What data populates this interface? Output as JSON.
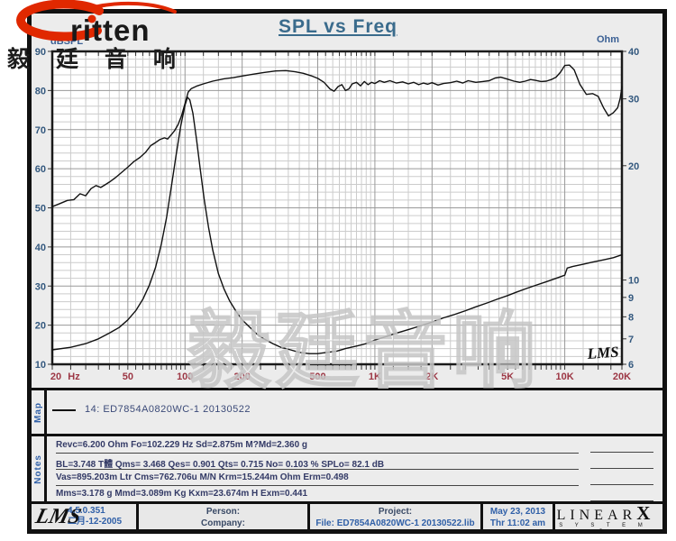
{
  "title": "SPL vs Freq",
  "brand": {
    "logo_text": "ritten",
    "cn_header": "毅 廷 音 响"
  },
  "watermark": "毅廷音响",
  "chart_data": {
    "type": "line",
    "title": "SPL vs Freq",
    "grid": "on",
    "x_axis": {
      "unit": "Hz",
      "scale": "log",
      "min": 20,
      "max": 20000,
      "ticks": [
        20,
        50,
        100,
        200,
        500,
        1000,
        2000,
        5000,
        10000,
        20000
      ],
      "tick_labels": [
        "20",
        "50",
        "100",
        "200",
        "500",
        "1K",
        "2K",
        "5K",
        "10K",
        "20K"
      ],
      "minor_multipliers": [
        1.25,
        1.5,
        1.75,
        2,
        2.5,
        3,
        3.5,
        4,
        4.5,
        5,
        5.5,
        6,
        6.5,
        7,
        7.5,
        8,
        8.5,
        9,
        9.5
      ]
    },
    "y_left": {
      "label": "dBSPL",
      "scale": "linear",
      "min": 10,
      "max": 90,
      "ticks": [
        90,
        80,
        70,
        60,
        50,
        40,
        30,
        20,
        10
      ],
      "minor_step": 2
    },
    "y_right": {
      "label": "Ohm",
      "scale": "log",
      "min": 6,
      "max": 40,
      "ticks": [
        40,
        30,
        20,
        10,
        9,
        8,
        7,
        6
      ]
    },
    "in_plot_label": "LMS",
    "series": [
      {
        "name": "SPL curve — 14: ED7854A0820WC-1 20130522",
        "axis": "left",
        "points": [
          [
            20,
            50.3
          ],
          [
            22,
            51.1
          ],
          [
            24,
            51.9
          ],
          [
            26,
            52.1
          ],
          [
            28,
            53.6
          ],
          [
            30,
            53.1
          ],
          [
            32,
            54.9
          ],
          [
            34,
            55.7
          ],
          [
            36,
            55.2
          ],
          [
            38,
            55.9
          ],
          [
            40,
            56.6
          ],
          [
            43,
            57.7
          ],
          [
            46,
            58.9
          ],
          [
            50,
            60.4
          ],
          [
            54,
            61.9
          ],
          [
            58,
            62.9
          ],
          [
            62,
            64.2
          ],
          [
            66,
            65.9
          ],
          [
            70,
            66.7
          ],
          [
            74,
            67.5
          ],
          [
            78,
            67.9
          ],
          [
            81,
            67.6
          ],
          [
            84,
            68.5
          ],
          [
            88,
            69.7
          ],
          [
            92,
            71.3
          ],
          [
            96,
            73.6
          ],
          [
            100,
            76.6
          ],
          [
            104,
            79.6
          ],
          [
            108,
            80.5
          ],
          [
            115,
            81.1
          ],
          [
            125,
            81.7
          ],
          [
            140,
            82.4
          ],
          [
            160,
            83
          ],
          [
            180,
            83.3
          ],
          [
            200,
            83.7
          ],
          [
            230,
            84.2
          ],
          [
            260,
            84.6
          ],
          [
            300,
            85
          ],
          [
            340,
            85.1
          ],
          [
            380,
            84.8
          ],
          [
            420,
            84.4
          ],
          [
            460,
            83.8
          ],
          [
            500,
            83.1
          ],
          [
            540,
            82.1
          ],
          [
            580,
            80.4
          ],
          [
            610,
            79.8
          ],
          [
            640,
            81
          ],
          [
            670,
            81.5
          ],
          [
            700,
            80
          ],
          [
            730,
            80.4
          ],
          [
            760,
            81.7
          ],
          [
            800,
            82.1
          ],
          [
            840,
            81.2
          ],
          [
            880,
            82.3
          ],
          [
            920,
            81.5
          ],
          [
            960,
            82.1
          ],
          [
            1000,
            81.8
          ],
          [
            1060,
            82.5
          ],
          [
            1120,
            82.1
          ],
          [
            1200,
            82.5
          ],
          [
            1300,
            81.9
          ],
          [
            1400,
            82.2
          ],
          [
            1500,
            81.7
          ],
          [
            1600,
            82.1
          ],
          [
            1700,
            81.5
          ],
          [
            1800,
            81.9
          ],
          [
            1900,
            81.6
          ],
          [
            2000,
            82
          ],
          [
            2150,
            81.4
          ],
          [
            2300,
            81.8
          ],
          [
            2500,
            82
          ],
          [
            2700,
            82.4
          ],
          [
            2900,
            81.9
          ],
          [
            3100,
            82.5
          ],
          [
            3400,
            82.1
          ],
          [
            3700,
            82.3
          ],
          [
            4000,
            82.5
          ],
          [
            4300,
            83.2
          ],
          [
            4600,
            83.4
          ],
          [
            5000,
            82.9
          ],
          [
            5400,
            82.4
          ],
          [
            5800,
            82.1
          ],
          [
            6200,
            82.4
          ],
          [
            6600,
            82.8
          ],
          [
            7000,
            82.6
          ],
          [
            7500,
            82.3
          ],
          [
            8000,
            82.4
          ],
          [
            8500,
            82.8
          ],
          [
            9000,
            83.4
          ],
          [
            9500,
            84.7
          ],
          [
            10000,
            86.4
          ],
          [
            10600,
            86.5
          ],
          [
            11200,
            85.3
          ],
          [
            12000,
            81.6
          ],
          [
            13000,
            79
          ],
          [
            14000,
            79.2
          ],
          [
            15000,
            78.5
          ],
          [
            16000,
            75.6
          ],
          [
            17000,
            73.5
          ],
          [
            18000,
            74.3
          ],
          [
            19000,
            75.6
          ],
          [
            19600,
            78.1
          ],
          [
            20000,
            81
          ]
        ]
      },
      {
        "name": "Impedance curve (Ohm)",
        "axis": "right",
        "points": [
          [
            20,
            6.55
          ],
          [
            25,
            6.65
          ],
          [
            30,
            6.8
          ],
          [
            35,
            7
          ],
          [
            40,
            7.25
          ],
          [
            45,
            7.5
          ],
          [
            50,
            7.85
          ],
          [
            55,
            8.3
          ],
          [
            60,
            8.9
          ],
          [
            65,
            9.7
          ],
          [
            70,
            10.8
          ],
          [
            75,
            12.4
          ],
          [
            80,
            14.6
          ],
          [
            85,
            17.8
          ],
          [
            90,
            21.5
          ],
          [
            95,
            25.5
          ],
          [
            100,
            28.8
          ],
          [
            103,
            30.3
          ],
          [
            106,
            29.8
          ],
          [
            110,
            27.5
          ],
          [
            115,
            23.5
          ],
          [
            120,
            19.8
          ],
          [
            126,
            16.4
          ],
          [
            133,
            13.8
          ],
          [
            140,
            12
          ],
          [
            150,
            10.4
          ],
          [
            160,
            9.5
          ],
          [
            172,
            8.8
          ],
          [
            185,
            8.3
          ],
          [
            200,
            7.85
          ],
          [
            220,
            7.5
          ],
          [
            240,
            7.2
          ],
          [
            260,
            7
          ],
          [
            290,
            6.8
          ],
          [
            320,
            6.65
          ],
          [
            360,
            6.55
          ],
          [
            400,
            6.45
          ],
          [
            450,
            6.4
          ],
          [
            500,
            6.4
          ],
          [
            560,
            6.45
          ],
          [
            630,
            6.5
          ],
          [
            700,
            6.6
          ],
          [
            800,
            6.7
          ],
          [
            900,
            6.8
          ],
          [
            1000,
            6.95
          ],
          [
            1150,
            7.1
          ],
          [
            1300,
            7.25
          ],
          [
            1500,
            7.4
          ],
          [
            1700,
            7.55
          ],
          [
            2000,
            7.75
          ],
          [
            2300,
            7.95
          ],
          [
            2600,
            8.1
          ],
          [
            3000,
            8.3
          ],
          [
            3400,
            8.5
          ],
          [
            3900,
            8.7
          ],
          [
            4400,
            8.9
          ],
          [
            5000,
            9.1
          ],
          [
            5600,
            9.3
          ],
          [
            6300,
            9.5
          ],
          [
            7100,
            9.7
          ],
          [
            8000,
            9.9
          ],
          [
            9000,
            10.1
          ],
          [
            10000,
            10.3
          ],
          [
            10300,
            10.75
          ],
          [
            11000,
            10.85
          ],
          [
            12500,
            11
          ],
          [
            14000,
            11.15
          ],
          [
            16000,
            11.3
          ],
          [
            18000,
            11.45
          ],
          [
            20000,
            11.65
          ]
        ]
      }
    ]
  },
  "map": {
    "label": "Map",
    "legend": "14: ED7854A0820WC-1  20130522"
  },
  "notes": {
    "label": "Notes",
    "lines": [
      "Revc=6.200 Ohm  Fo=102.229 Hz  Sd=2.875m M?Md=2.360 g",
      "BL=3.748 T體  Qms= 3.468  Qes= 0.901  Qts= 0.715  No= 0.103 %  SPLo= 82.1 dB",
      "Vas=895.203m Ltr  Cms=762.706u M/N  Krm=15.244m Ohm  Erm=0.498",
      "Mms=3.178 g  Mmd=3.089m Kg  Kxm=23.674m H  Exm=0.441"
    ]
  },
  "footer": {
    "logo": "LMS",
    "version": "4.5.0.351",
    "date": "二月-12-2005",
    "person_label": "Person:",
    "company_label": "Company:",
    "project_label": "Project:",
    "file_label": "File: ED7854A0820WC-1  20130522.lib",
    "print_date": "May 23, 2013",
    "print_time": "Thr 11:02 am",
    "vendor_main": "LINEAR",
    "vendor_x": "X",
    "vendor_sub": "S Y S T E M S"
  },
  "colors": {
    "frame": "#111111",
    "panel_bg": "#ececec",
    "plot_bg": "#ffffff",
    "grid_minor": "#cccccc",
    "grid_major": "#999999",
    "curve": "#111111",
    "freq_labels": "#9c3644",
    "db_labels": "#33587e",
    "axis_names": "#3a5f94",
    "title": "#3a6b8c",
    "logo_red": "#e02800"
  }
}
